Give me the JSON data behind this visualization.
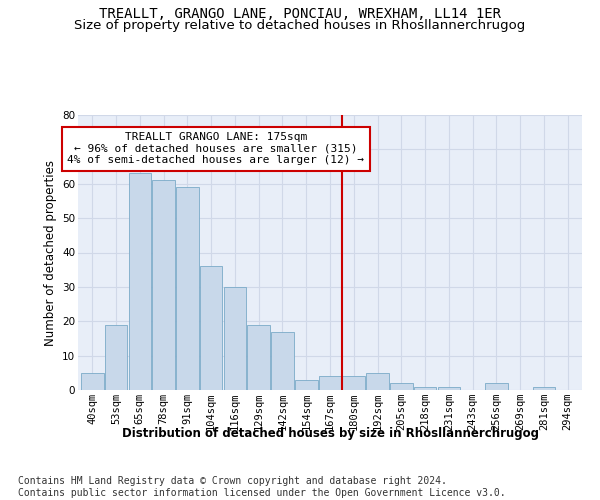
{
  "title": "TREALLT, GRANGO LANE, PONCIAU, WREXHAM, LL14 1ER",
  "subtitle": "Size of property relative to detached houses in Rhosllannerchrugog",
  "xlabel": "Distribution of detached houses by size in Rhosllannerchrugog",
  "ylabel": "Number of detached properties",
  "categories": [
    "40sqm",
    "53sqm",
    "65sqm",
    "78sqm",
    "91sqm",
    "104sqm",
    "116sqm",
    "129sqm",
    "142sqm",
    "154sqm",
    "167sqm",
    "180sqm",
    "192sqm",
    "205sqm",
    "218sqm",
    "231sqm",
    "243sqm",
    "256sqm",
    "269sqm",
    "281sqm",
    "294sqm"
  ],
  "values": [
    5,
    19,
    63,
    61,
    59,
    36,
    30,
    19,
    17,
    3,
    4,
    4,
    5,
    2,
    1,
    1,
    0,
    2,
    0,
    1,
    0
  ],
  "bar_color": "#c8d8ea",
  "bar_edge_color": "#7aaac8",
  "vline_x": 10.5,
  "annotation_text": "TREALLT GRANGO LANE: 175sqm\n← 96% of detached houses are smaller (315)\n4% of semi-detached houses are larger (12) →",
  "annotation_box_color": "#ffffff",
  "annotation_box_edge_color": "#cc0000",
  "ylim": [
    0,
    80
  ],
  "yticks": [
    0,
    10,
    20,
    30,
    40,
    50,
    60,
    70,
    80
  ],
  "footer": "Contains HM Land Registry data © Crown copyright and database right 2024.\nContains public sector information licensed under the Open Government Licence v3.0.",
  "background_color": "#e8eef8",
  "grid_color": "#d0d8e8",
  "title_fontsize": 10,
  "subtitle_fontsize": 9.5,
  "axis_label_fontsize": 8.5,
  "tick_fontsize": 7.5,
  "annotation_fontsize": 8,
  "footer_fontsize": 7
}
